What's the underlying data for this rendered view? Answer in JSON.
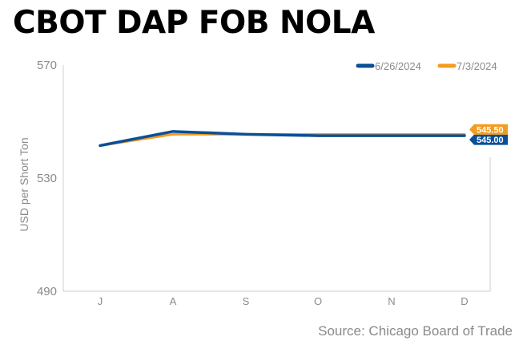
{
  "title": "CBOT DAP FOB NOLA",
  "source": "Source: Chicago Board of Trade",
  "colors": {
    "series1": "#0b4f96",
    "series2": "#f39c22",
    "axis": "#cfcfcf",
    "tick_text": "#8a8a8a"
  },
  "chart_data": {
    "type": "line",
    "categories": [
      "J",
      "A",
      "S",
      "O",
      "N",
      "D"
    ],
    "ylabel": "USD per Short Ton",
    "xlabel": "",
    "ylim": [
      490,
      570
    ],
    "yticks": [
      "490",
      "530",
      "570"
    ],
    "grid": false,
    "legend": "top-right",
    "series": [
      {
        "name": "6/26/2024",
        "color": "#0b4f96",
        "values": [
          541.5,
          546.5,
          545.5,
          545.0,
          545.0,
          545.0
        ],
        "end_label": "545.00"
      },
      {
        "name": "7/3/2024",
        "color": "#f39c22",
        "values": [
          541.5,
          545.5,
          545.5,
          545.5,
          545.5,
          545.5
        ],
        "end_label": "545.50"
      }
    ]
  }
}
